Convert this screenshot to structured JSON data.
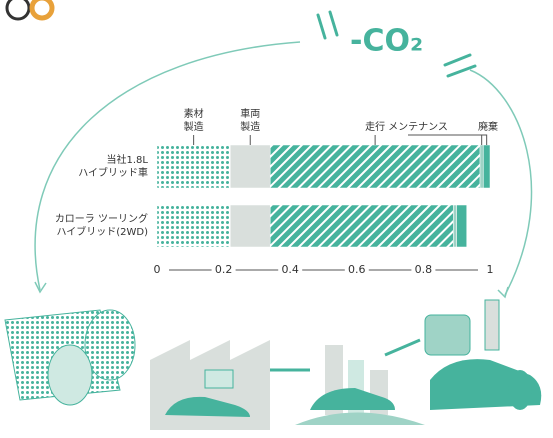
{
  "chart_data": {
    "type": "stacked-bar-horizontal",
    "annotation": "-CO₂",
    "categories": [
      "当社1.8L\nハイブリッド車",
      "カローラ ツーリング\nハイブリッド(2WD)"
    ],
    "series": [
      {
        "name": "素材\n製造",
        "color": "#46b39d",
        "pattern": "dots",
        "values": [
          0.22,
          0.22
        ]
      },
      {
        "name": "車両\n製造",
        "color": "#d9dfdc",
        "pattern": "none",
        "values": [
          0.12,
          0.12
        ]
      },
      {
        "name": "走行",
        "color": "#46b39d",
        "pattern": "hatch",
        "values": [
          0.63,
          0.55
        ]
      },
      {
        "name": "メンテナンス",
        "color": "#9fd3c6",
        "pattern": "none",
        "values": [
          0.01,
          0.01
        ]
      },
      {
        "name": "廃棄",
        "color": "#46b39d",
        "pattern": "none",
        "values": [
          0.02,
          0.03
        ]
      }
    ],
    "xlim": [
      0,
      1
    ],
    "xticks": [
      0,
      0.2,
      0.4,
      0.6,
      0.8,
      1
    ]
  }
}
